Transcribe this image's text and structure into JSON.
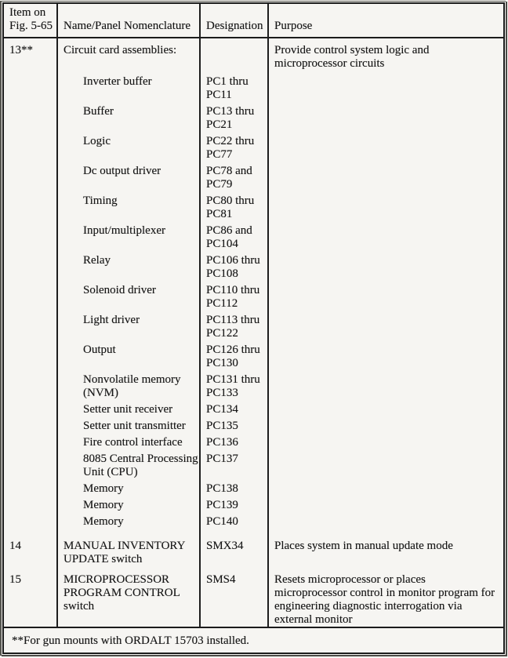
{
  "page": {
    "paper_color": "#f6f5f2",
    "ink_color": "#1c1c1c"
  },
  "table": {
    "headers": [
      "Item on Fig. 5-65",
      "Name/Panel Nomenclature",
      "Designation",
      "Purpose"
    ],
    "items": [
      {
        "item": "13**",
        "name": "Circuit card assemblies:",
        "designation": "",
        "purpose": "Provide control system logic and microprocessor circuits",
        "sub_items": [
          {
            "name": "Inverter buffer",
            "designation": "PC1 thru PC11"
          },
          {
            "name": "Buffer",
            "designation": "PC13 thru PC21"
          },
          {
            "name": "Logic",
            "designation": "PC22 thru PC77"
          },
          {
            "name": "Dc output driver",
            "designation": "PC78 and PC79"
          },
          {
            "name": "Timing",
            "designation": "PC80 thru PC81"
          },
          {
            "name": "Input/multiplexer",
            "designation": "PC86 and PC104"
          },
          {
            "name": "Relay",
            "designation": "PC106 thru PC108"
          },
          {
            "name": "Solenoid driver",
            "designation": "PC110 thru PC112"
          },
          {
            "name": "Light driver",
            "designation": "PC113 thru PC122"
          },
          {
            "name": "Output",
            "designation": "PC126 thru PC130"
          },
          {
            "name": "Nonvolatile memory (NVM)",
            "designation": "PC131 thru PC133"
          },
          {
            "name": "Setter unit receiver",
            "designation": "PC134"
          },
          {
            "name": "Setter unit transmitter",
            "designation": "PC135"
          },
          {
            "name": "Fire control interface",
            "designation": "PC136"
          },
          {
            "name": "8085 Central Processing Unit (CPU)",
            "designation": "PC137"
          },
          {
            "name": "Memory",
            "designation": "PC138"
          },
          {
            "name": "Memory",
            "designation": "PC139"
          },
          {
            "name": "Memory",
            "designation": "PC140"
          }
        ]
      },
      {
        "item": "14",
        "name": "MANUAL INVENTORY UPDATE switch",
        "designation": "SMX34",
        "purpose": "Places system in manual update mode",
        "sub_items": []
      },
      {
        "item": "15",
        "name": "MICROPROCESSOR PROGRAM CONTROL switch",
        "designation": "SMS4",
        "purpose": "Resets microprocessor or places microprocessor control in monitor program for engineering diagnostic interrogation via external monitor",
        "sub_items": []
      }
    ],
    "footnote": "**For gun mounts with ORDALT 15703 installed."
  }
}
